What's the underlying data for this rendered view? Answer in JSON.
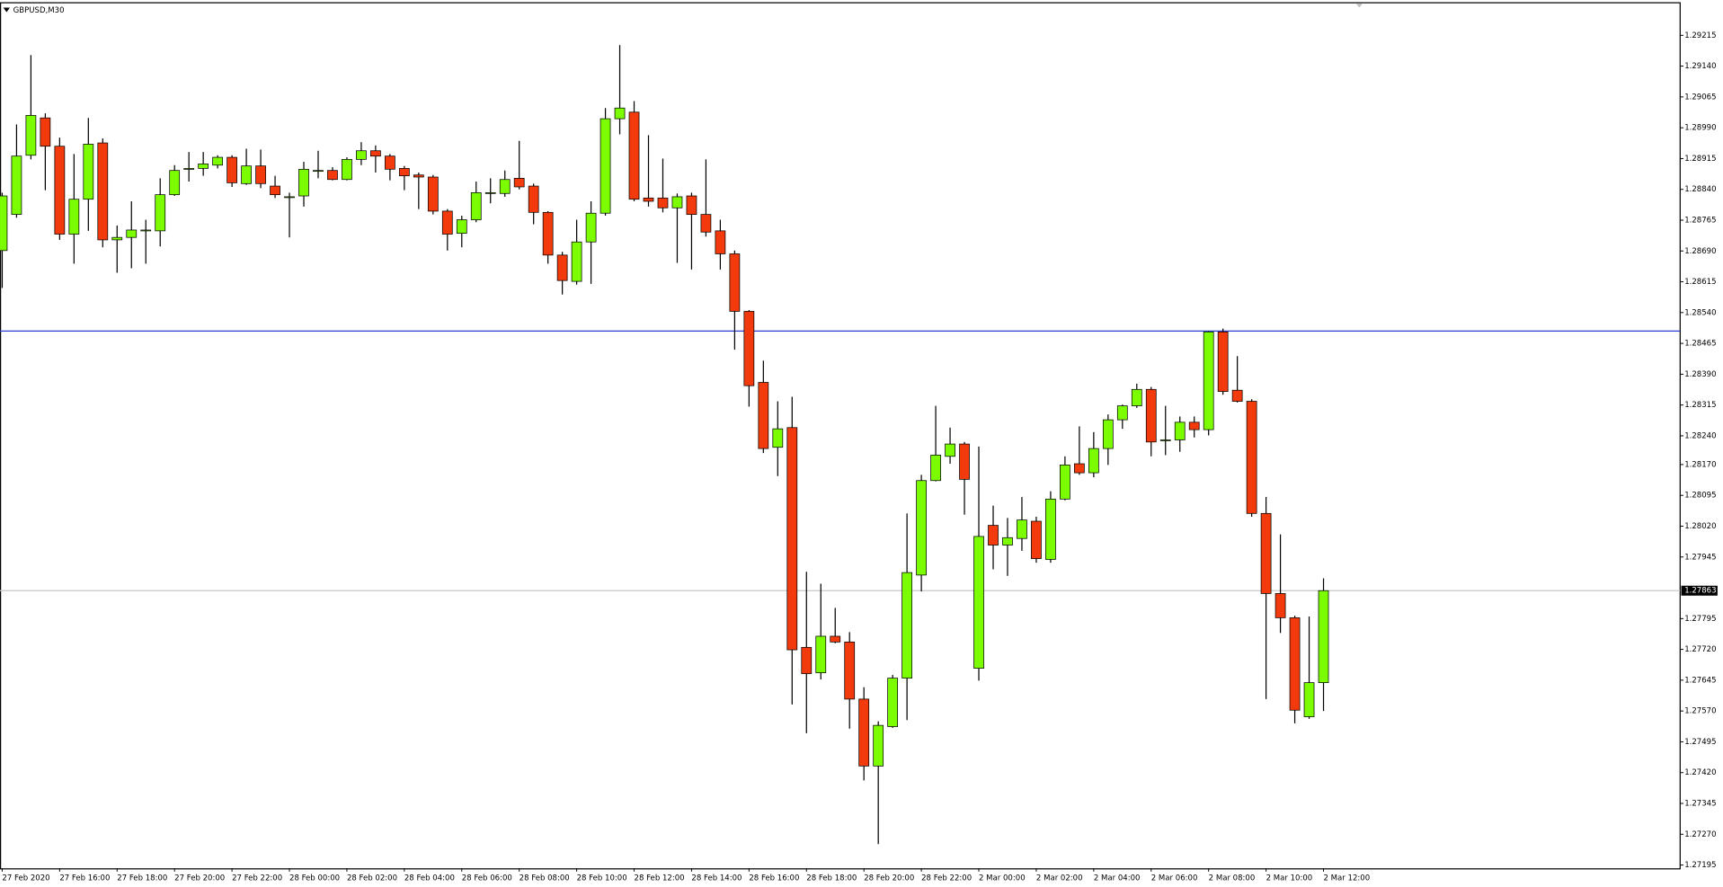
{
  "chart_data": {
    "type": "candlestick",
    "title": "GBPUSD,M30",
    "categories": [
      "27 Feb 2020",
      null,
      null,
      null,
      "27 Feb 16:00",
      null,
      null,
      null,
      "27 Feb 18:00",
      null,
      null,
      null,
      "27 Feb 20:00",
      null,
      null,
      null,
      "27 Feb 22:00",
      null,
      null,
      null,
      "28 Feb 00:00",
      null,
      null,
      null,
      "28 Feb 02:00",
      null,
      null,
      null,
      "28 Feb 04:00",
      null,
      null,
      null,
      "28 Feb 06:00",
      null,
      null,
      null,
      "28 Feb 08:00",
      null,
      null,
      null,
      "28 Feb 10:00",
      null,
      null,
      null,
      "28 Feb 12:00",
      null,
      null,
      null,
      "28 Feb 14:00",
      null,
      null,
      null,
      "28 Feb 16:00",
      null,
      null,
      null,
      "28 Feb 18:00",
      null,
      null,
      null,
      "28 Feb 20:00",
      null,
      null,
      null,
      "28 Feb 22:00",
      null,
      null,
      null,
      "2 Mar 00:00",
      null,
      null,
      null,
      "2 Mar 02:00",
      null,
      null,
      null,
      "2 Mar 04:00",
      null,
      null,
      null,
      "2 Mar 06:00",
      null,
      null,
      null,
      "2 Mar 08:00",
      null,
      null,
      null,
      "2 Mar 10:00",
      null,
      null,
      null,
      "2 Mar 12:00"
    ],
    "open": [
      1.28691,
      1.28779,
      1.28923,
      1.29014,
      1.28945,
      1.28731,
      1.28816,
      1.28953,
      1.28717,
      1.28723,
      1.28741,
      1.28739,
      1.28827,
      1.28891,
      1.28891,
      1.28899,
      1.28918,
      1.28854,
      1.28897,
      1.28848,
      1.28822,
      1.28824,
      1.28886,
      1.28886,
      1.28864,
      1.28913,
      1.28934,
      1.28921,
      1.28891,
      1.28875,
      1.2887,
      1.28787,
      1.28733,
      1.28766,
      1.28832,
      1.2883,
      1.28867,
      1.28848,
      1.28784,
      1.2868,
      1.28616,
      1.28712,
      1.28782,
      1.29012,
      1.29028,
      1.28819,
      1.28819,
      1.28795,
      1.28824,
      1.28779,
      1.28739,
      1.28683,
      1.28543,
      1.2837,
      1.28212,
      1.2826,
      1.27725,
      1.27663,
      1.27752,
      1.27738,
      1.27599,
      1.27436,
      1.27532,
      1.2765,
      1.27901,
      1.28131,
      1.2819,
      1.2822,
      1.27674,
      1.28022,
      1.27974,
      1.2799,
      1.28032,
      1.27939,
      1.28086,
      1.28172,
      1.2815,
      1.28209,
      1.28279,
      1.28313,
      1.28353,
      1.2823,
      1.2823,
      1.28273,
      1.28255,
      1.28493,
      1.28351,
      1.28324,
      1.28051,
      1.27856,
      1.27797,
      1.27556,
      1.27639
    ],
    "high": [
      1.28832,
      1.28998,
      1.29167,
      1.29025,
      1.28966,
      1.28926,
      1.29014,
      1.28964,
      1.28752,
      1.28811,
      1.28766,
      1.28867,
      1.28899,
      1.28931,
      1.28931,
      1.28923,
      1.28923,
      1.28939,
      1.28937,
      1.28873,
      1.28832,
      1.28907,
      1.28934,
      1.28894,
      1.28918,
      1.28955,
      1.28947,
      1.28926,
      1.28897,
      1.28881,
      1.28875,
      1.28792,
      1.28776,
      1.28859,
      1.28867,
      1.28886,
      1.28958,
      1.28854,
      1.28787,
      1.28688,
      1.28766,
      1.28811,
      1.29038,
      1.29191,
      1.29055,
      1.28972,
      1.28915,
      1.2883,
      1.28832,
      1.28913,
      1.28766,
      1.28691,
      1.28546,
      1.28423,
      1.28324,
      1.28335,
      1.27909,
      1.2788,
      1.27821,
      1.27762,
      1.27628,
      1.27545,
      1.27658,
      1.28051,
      1.28145,
      1.28313,
      1.2826,
      1.28225,
      1.28214,
      1.2807,
      1.2804,
      1.28091,
      1.28043,
      1.28105,
      1.2819,
      1.28263,
      1.28249,
      1.28292,
      1.28316,
      1.28367,
      1.28359,
      1.28313,
      1.28287,
      1.28287,
      1.28495,
      1.28501,
      1.28434,
      1.28329,
      1.28091,
      1.28,
      1.27802,
      1.278,
      1.27893
    ],
    "low": [
      1.286,
      1.28771,
      1.28913,
      1.28838,
      1.28717,
      1.28659,
      1.28739,
      1.28699,
      1.28637,
      1.28648,
      1.28659,
      1.28701,
      1.28824,
      1.28859,
      1.28873,
      1.28891,
      1.28846,
      1.28851,
      1.28843,
      1.28819,
      1.28723,
      1.28798,
      1.28867,
      1.28862,
      1.28862,
      1.28899,
      1.28881,
      1.28862,
      1.28838,
      1.28792,
      1.28779,
      1.28691,
      1.28699,
      1.2876,
      1.28806,
      1.28822,
      1.2884,
      1.28755,
      1.28659,
      1.28584,
      1.28608,
      1.2861,
      1.28776,
      1.28974,
      1.28811,
      1.28798,
      1.28784,
      1.28661,
      1.28645,
      1.28725,
      1.28645,
      1.2845,
      1.28311,
      1.28198,
      1.28142,
      1.27586,
      1.27516,
      1.27647,
      1.27735,
      1.27527,
      1.27401,
      1.27246,
      1.27529,
      1.27548,
      1.27861,
      1.28129,
      1.28172,
      1.28048,
      1.27644,
      1.27915,
      1.27899,
      1.2796,
      1.27931,
      1.27931,
      1.28083,
      1.28145,
      1.28139,
      1.28169,
      1.28257,
      1.28308,
      1.2819,
      1.28193,
      1.28201,
      1.28236,
      1.28241,
      1.2834,
      1.28321,
      1.28043,
      1.27599,
      1.2776,
      1.2754,
      1.27551,
      1.2757
    ],
    "close": [
      1.28824,
      1.28921,
      1.2902,
      1.28945,
      1.28731,
      1.28816,
      1.2895,
      1.28717,
      1.28723,
      1.28741,
      1.28741,
      1.28827,
      1.28886,
      1.28891,
      1.28902,
      1.28918,
      1.28856,
      1.28897,
      1.28854,
      1.28827,
      1.28822,
      1.28889,
      1.28886,
      1.28864,
      1.28913,
      1.28934,
      1.28921,
      1.28889,
      1.28873,
      1.2887,
      1.28787,
      1.28731,
      1.28766,
      1.28832,
      1.28832,
      1.28864,
      1.28846,
      1.28784,
      1.2868,
      1.28618,
      1.28712,
      1.28782,
      1.29012,
      1.29038,
      1.28816,
      1.28811,
      1.28795,
      1.28822,
      1.28779,
      1.28736,
      1.28683,
      1.28543,
      1.28362,
      1.28209,
      1.28257,
      1.27719,
      1.27661,
      1.27752,
      1.27738,
      1.27599,
      1.27436,
      1.27535,
      1.2765,
      1.27907,
      1.28131,
      1.28193,
      1.2822,
      1.28134,
      1.27995,
      1.27974,
      1.27992,
      1.28035,
      1.27941,
      1.28086,
      1.28169,
      1.2815,
      1.28209,
      1.28279,
      1.28313,
      1.28353,
      1.28225,
      1.2823,
      1.28273,
      1.28255,
      1.28493,
      1.28348,
      1.28324,
      1.28051,
      1.27856,
      1.27797,
      1.27572,
      1.27639,
      1.27863
    ],
    "up_color": "#7cfc00",
    "down_color": "#f23a0c",
    "ylim": [
      1.27187,
      1.29293
    ],
    "yticks": [
      1.29215,
      {
        "value": 1.2914,
        "label": "1.29140"
      },
      1.29065,
      {
        "value": 1.2899,
        "label": "1.28990"
      },
      1.28915,
      {
        "value": 1.2884,
        "label": "1.28840"
      },
      1.28765,
      {
        "value": 1.2869,
        "label": "1.28690"
      },
      1.28615,
      {
        "value": 1.2854,
        "label": "1.28540"
      },
      1.28465,
      {
        "value": 1.2839,
        "label": "1.28390"
      },
      1.28315,
      {
        "value": 1.2824,
        "label": "1.28240"
      },
      {
        "value": 1.2817,
        "label": "1.28170"
      },
      1.28095,
      {
        "value": 1.2802,
        "label": "1.28020"
      },
      1.27945,
      1.27795,
      {
        "value": 1.2772,
        "label": "1.27720"
      },
      1.27645,
      {
        "value": 1.2757,
        "label": "1.27570"
      },
      1.27495,
      {
        "value": 1.2742,
        "label": "1.27420"
      },
      1.27345,
      {
        "value": 1.2727,
        "label": "1.27270"
      },
      1.27195
    ],
    "hline": {
      "value": 1.28495,
      "color": "#2b3fd8"
    },
    "current_price": 1.27863
  }
}
